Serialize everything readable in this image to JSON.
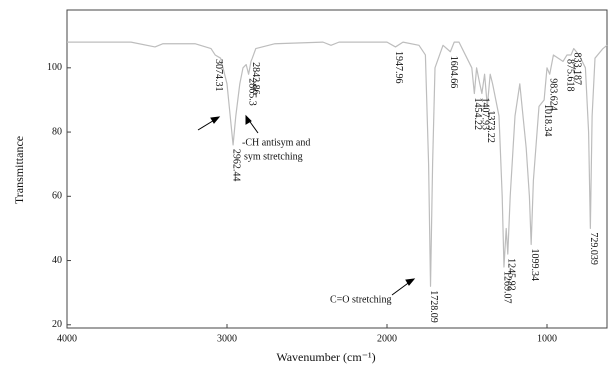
{
  "chart_data": {
    "type": "line",
    "xlabel": "Wavenumber (cm⁻¹)",
    "ylabel": "Transmittance",
    "xlim": [
      4000,
      625
    ],
    "ylim": [
      19,
      118
    ],
    "xticks": [
      4000,
      3000,
      2000,
      1000
    ],
    "yticks": [
      20,
      40,
      60,
      80,
      100
    ],
    "color": "#bdbdbd",
    "x": [
      4000,
      3800,
      3600,
      3450,
      3400,
      3200,
      3100,
      3074,
      3040,
      3000,
      2980,
      2962,
      2945,
      2920,
      2900,
      2880,
      2865,
      2850,
      2842,
      2820,
      2700,
      2400,
      2350,
      2300,
      2000,
      1947,
      1900,
      1800,
      1760,
      1740,
      1728,
      1715,
      1700,
      1650,
      1604,
      1580,
      1550,
      1500,
      1470,
      1454,
      1440,
      1420,
      1407,
      1390,
      1373,
      1355,
      1340,
      1300,
      1280,
      1269,
      1255,
      1245,
      1230,
      1200,
      1170,
      1130,
      1110,
      1099,
      1085,
      1050,
      1018,
      1000,
      983,
      960,
      900,
      875,
      850,
      833,
      800,
      760,
      740,
      729,
      718,
      700,
      650,
      625
    ],
    "values": [
      108,
      108,
      108,
      106.5,
      107.5,
      107.5,
      106,
      104,
      103,
      95,
      85,
      76,
      85,
      95,
      100,
      101,
      98,
      102,
      103,
      106,
      107.5,
      108,
      107,
      108,
      108,
      106.5,
      108,
      107,
      104,
      70,
      32,
      70,
      100,
      107,
      105,
      108,
      108,
      103,
      100,
      92,
      100,
      95,
      92,
      98,
      88,
      98,
      95,
      85,
      60,
      38,
      50,
      42,
      60,
      85,
      95,
      75,
      60,
      45,
      65,
      88,
      90,
      100,
      98,
      104,
      102,
      104,
      104,
      106,
      104,
      100,
      80,
      50,
      85,
      103,
      106,
      107
    ],
    "peaks": [
      {
        "x": 3074.31,
        "y": 104,
        "label": "3074.31"
      },
      {
        "x": 2962.44,
        "y": 76,
        "label": "2962.44"
      },
      {
        "x": 2865.3,
        "y": 98,
        "label": "2865.3"
      },
      {
        "x": 2842.86,
        "y": 103,
        "label": "2842.86"
      },
      {
        "x": 1947.96,
        "y": 106.5,
        "label": "1947.96"
      },
      {
        "x": 1728.09,
        "y": 32,
        "label": "1728.09"
      },
      {
        "x": 1604.66,
        "y": 105,
        "label": "1604.66"
      },
      {
        "x": 1454.22,
        "y": 92,
        "label": "1454.22"
      },
      {
        "x": 1407.93,
        "y": 92,
        "label": "1407.93"
      },
      {
        "x": 1373.22,
        "y": 88,
        "label": "1373.22"
      },
      {
        "x": 1269.07,
        "y": 38,
        "label": "1269.07"
      },
      {
        "x": 1245.92,
        "y": 42,
        "label": "1245.92"
      },
      {
        "x": 1099.34,
        "y": 45,
        "label": "1099.34"
      },
      {
        "x": 1018.34,
        "y": 90,
        "label": "1018.34"
      },
      {
        "x": 983.624,
        "y": 98,
        "label": "983.624"
      },
      {
        "x": 875.618,
        "y": 104,
        "label": "875.618"
      },
      {
        "x": 833.187,
        "y": 106,
        "label": "833.187"
      },
      {
        "x": 729.039,
        "y": 50,
        "label": "729.039"
      }
    ],
    "annotations": [
      {
        "lines": [
          "-CH antisym and",
          "sym stretching"
        ]
      },
      {
        "lines": [
          "C=O stretching"
        ]
      }
    ]
  }
}
